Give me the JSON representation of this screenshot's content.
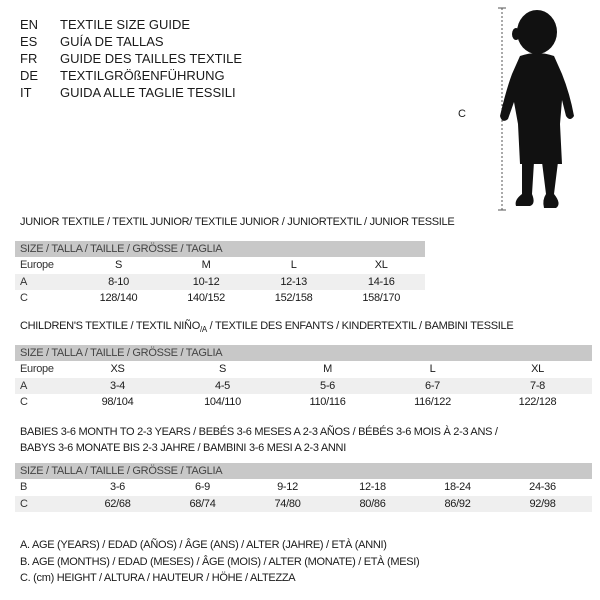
{
  "languages": [
    {
      "code": "EN",
      "text": "TEXTILE SIZE GUIDE"
    },
    {
      "code": "ES",
      "text": "GUÍA DE TALLAS"
    },
    {
      "code": "FR",
      "text": "GUIDE DES TAILLES TEXTILE"
    },
    {
      "code": "DE",
      "text": "TEXTILGRÖßENFÜHRUNG"
    },
    {
      "code": "IT",
      "text": "GUIDA ALLE TAGLIE TESSILI"
    }
  ],
  "figure": {
    "measure_label": "C",
    "icon": "baby-silhouette-icon"
  },
  "header_label": "SIZE / TALLA / TAILLE / GRÖSSE / TAGLIA",
  "junior": {
    "title": "JUNIOR TEXTILE / TEXTIL JUNIOR/ TEXTILE JUNIOR / JUNIORTEXTIL / JUNIOR TESSILE",
    "rows": [
      {
        "label": "Europe",
        "values": [
          "S",
          "M",
          "L",
          "XL"
        ]
      },
      {
        "label": "A",
        "values": [
          "8-10",
          "10-12",
          "12-13",
          "14-16"
        ]
      },
      {
        "label": "C",
        "values": [
          "128/140",
          "140/152",
          "152/158",
          "158/170"
        ]
      }
    ]
  },
  "children": {
    "title_a": "CHILDREN'S TEXTILE / TEXTIL NIÑO",
    "title_sub": "/A",
    "title_b": " / TEXTILE DES ENFANTS / KINDERTEXTIL / BAMBINI TESSILE",
    "rows": [
      {
        "label": "Europe",
        "values": [
          "XS",
          "S",
          "M",
          "L",
          "XL"
        ]
      },
      {
        "label": "A",
        "values": [
          "3-4",
          "4-5",
          "5-6",
          "6-7",
          "7-8"
        ]
      },
      {
        "label": "C",
        "values": [
          "98/104",
          "104/110",
          "110/116",
          "116/122",
          "122/128"
        ]
      }
    ]
  },
  "babies": {
    "title_line1": "BABIES 3-6 MONTH TO 2-3 YEARS / BEBÉS 3-6 MESES A 2-3 AÑOS / BÉBÉS 3-6 MOIS À 2-3 ANS /",
    "title_line2": "BABYS 3-6 MONATE BIS 2-3 JAHRE / BAMBINI 3-6 MESI A 2-3 ANNI",
    "rows": [
      {
        "label": "B",
        "values": [
          "3-6",
          "6-9",
          "9-12",
          "12-18",
          "18-24",
          "24-36"
        ]
      },
      {
        "label": "C",
        "values": [
          "62/68",
          "68/74",
          "74/80",
          "80/86",
          "86/92",
          "92/98"
        ]
      }
    ]
  },
  "legend": [
    "A. AGE (YEARS) / EDAD (AÑOS) / ÂGE (ANS) / ALTER (JAHRE) / ETÀ (ANNI)",
    "B. AGE (MONTHS) / EDAD (MESES) / ÂGE (MOIS) / ALTER (MONATE) / ETÀ (MESI)",
    "C. (cm) HEIGHT / ALTURA / HAUTEUR / HÖHE / ALTEZZA"
  ]
}
